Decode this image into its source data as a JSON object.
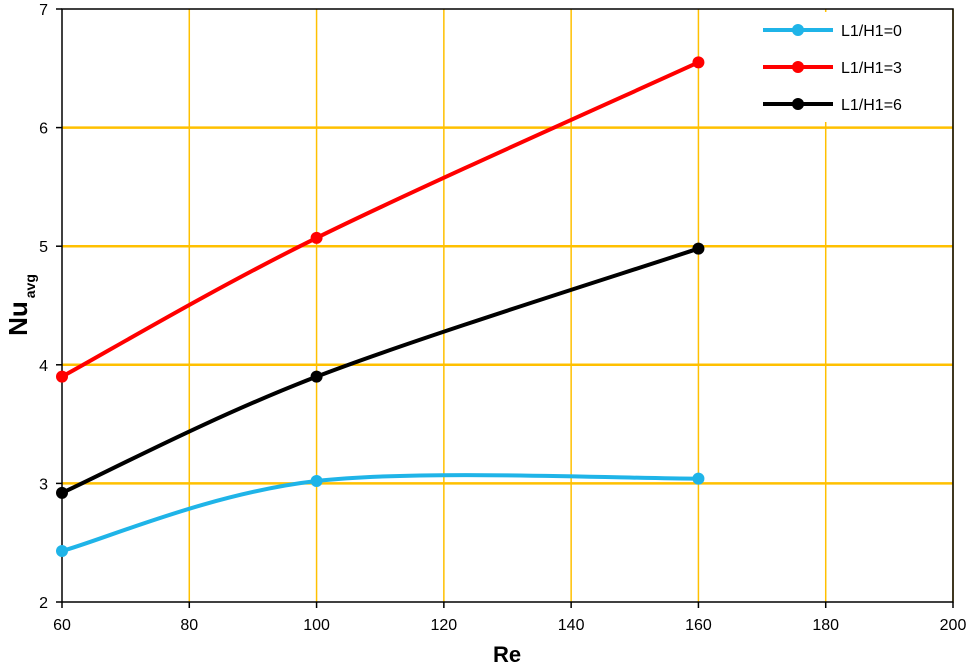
{
  "chart_data": {
    "type": "line",
    "title": "",
    "xlabel": "Re",
    "ylabel": "Nu",
    "ylabel_subscript": "avg",
    "xlim": [
      60,
      200
    ],
    "ylim": [
      2,
      7
    ],
    "xticks": [
      60,
      80,
      100,
      120,
      140,
      160,
      180,
      200
    ],
    "yticks": [
      2,
      3,
      4,
      5,
      6,
      7
    ],
    "grid": true,
    "grid_color": "#FFC000",
    "legend_position": "top-right",
    "series": [
      {
        "name": "L1/H1=0",
        "color": "#1FB4E8",
        "x": [
          60,
          100,
          160
        ],
        "y": [
          2.43,
          3.02,
          3.04
        ]
      },
      {
        "name": "L1/H1=3",
        "color": "#FF0000",
        "x": [
          60,
          100,
          160
        ],
        "y": [
          3.9,
          5.07,
          6.55
        ]
      },
      {
        "name": "L1/H1=6",
        "color": "#000000",
        "x": [
          60,
          100,
          160
        ],
        "y": [
          2.92,
          3.9,
          4.98
        ]
      }
    ]
  }
}
